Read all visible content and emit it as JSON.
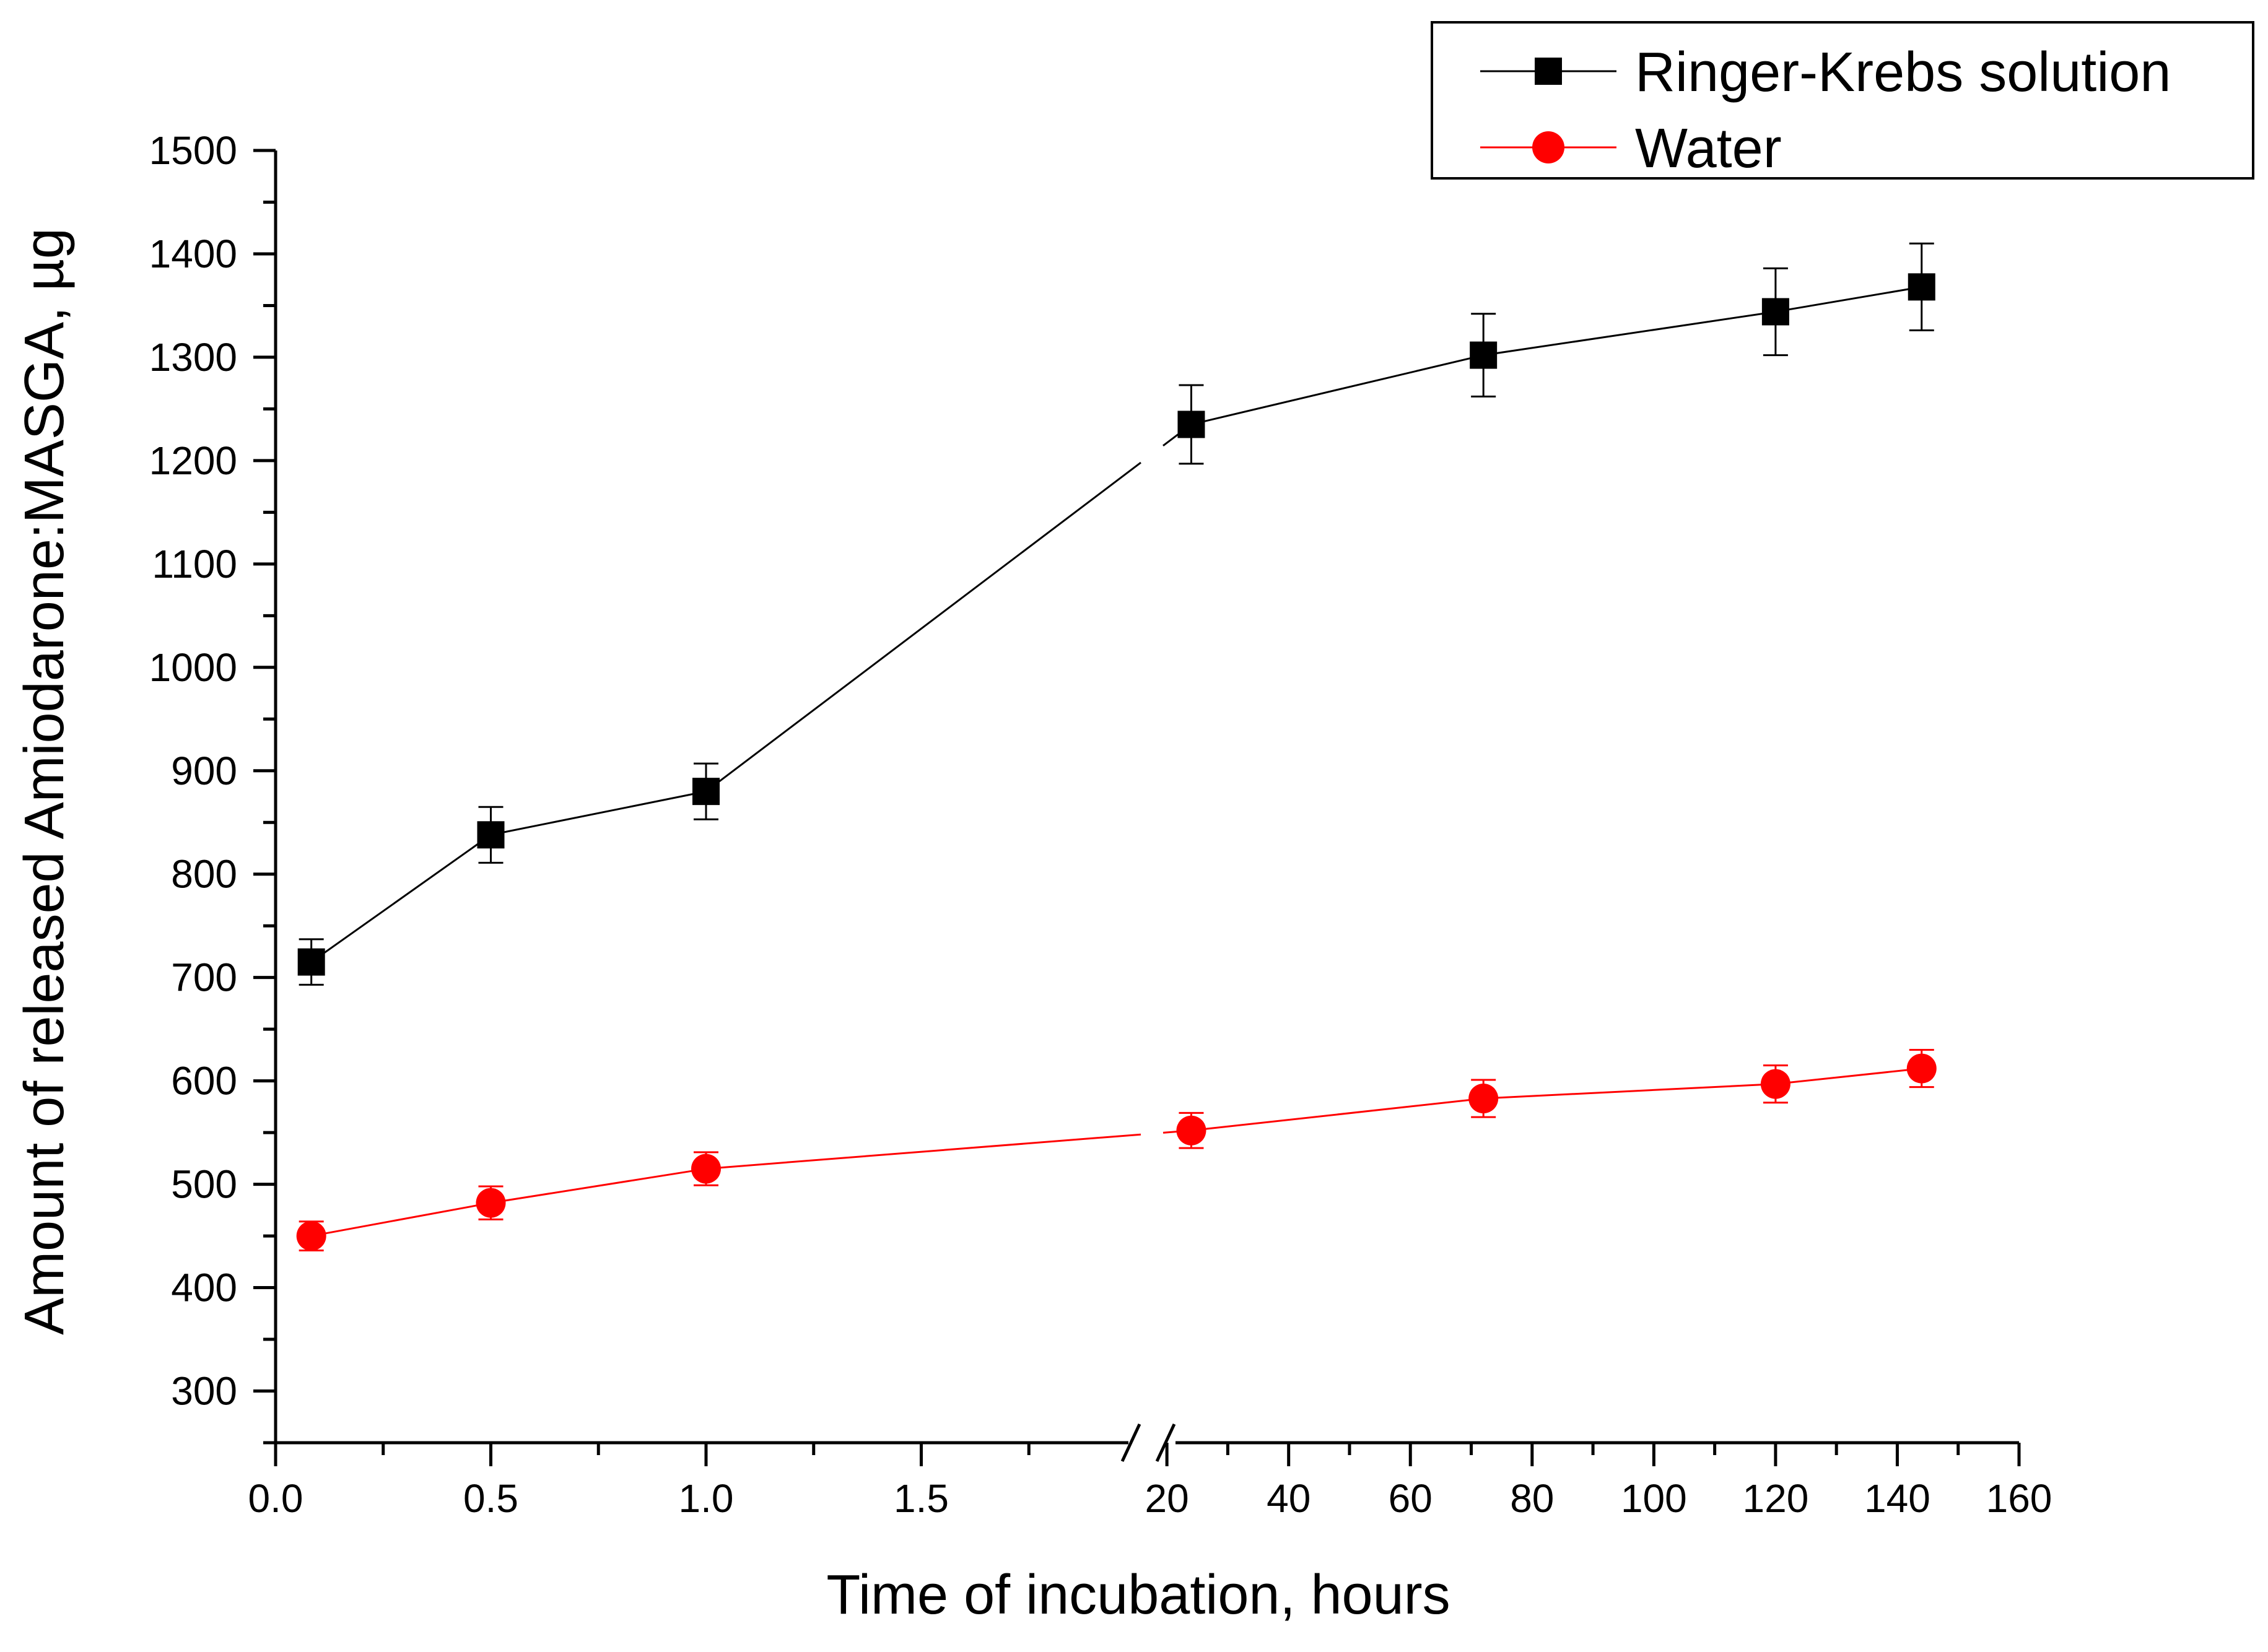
{
  "chart_data": {
    "type": "line",
    "title": "",
    "xlabel": "Time of incubation, hours",
    "ylabel": "Amount of released Amiodarone:MASGA, µg",
    "ylim": [
      250,
      1500
    ],
    "yticks": [
      300,
      400,
      500,
      600,
      700,
      800,
      900,
      1000,
      1100,
      1200,
      1300,
      1400,
      1500
    ],
    "x_axis_break": true,
    "x_segments": [
      {
        "range": [
          0,
          2.0
        ],
        "ticks": [
          0.0,
          0.5,
          1.0,
          1.5
        ],
        "tick_labels": [
          "0.0",
          "0.5",
          "1.0",
          "1.5"
        ]
      },
      {
        "range": [
          15,
          160
        ],
        "ticks": [
          20,
          40,
          60,
          80,
          100,
          120,
          140,
          160
        ],
        "tick_labels": [
          "20",
          "40",
          "60",
          "80",
          "100",
          "120",
          "140",
          "160"
        ]
      }
    ],
    "x": [
      0.083,
      0.5,
      1.0,
      24,
      72,
      120,
      144
    ],
    "series": [
      {
        "name": "Ringer-Krebs solution",
        "color": "#000000",
        "marker": "square",
        "values": [
          715,
          838,
          880,
          1235,
          1302,
          1344,
          1368
        ],
        "errors": [
          22,
          27,
          27,
          38,
          40,
          42,
          42
        ]
      },
      {
        "name": "Water",
        "color": "#ff0000",
        "marker": "circle",
        "values": [
          450,
          482,
          515,
          552,
          583,
          597,
          612
        ],
        "errors": [
          14,
          16,
          16,
          17,
          18,
          18,
          18
        ]
      }
    ],
    "legend": {
      "position": "top-right",
      "entries": [
        "Ringer-Krebs solution",
        "Water"
      ]
    }
  }
}
